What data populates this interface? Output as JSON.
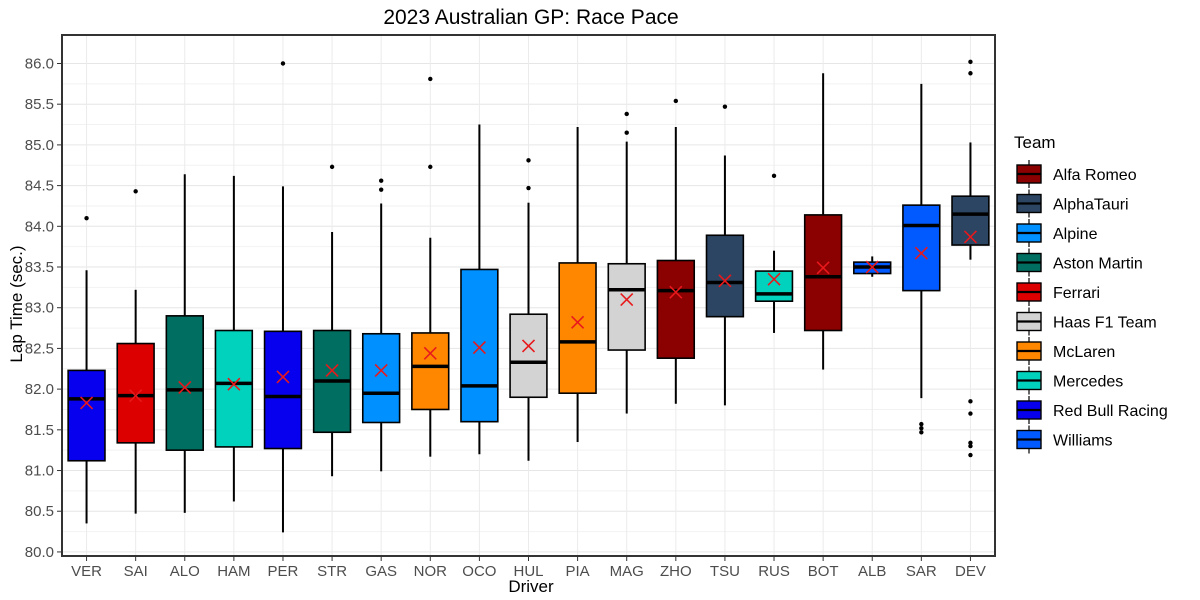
{
  "chart_data": {
    "type": "box",
    "title": "2023 Australian GP: Race Pace",
    "xlabel": "Driver",
    "ylabel": "Lap Time (sec.)",
    "ylim": [
      79.95,
      86.35
    ],
    "yticks": [
      "80.0",
      "80.5",
      "81.0",
      "81.5",
      "82.0",
      "82.5",
      "83.0",
      "83.5",
      "84.0",
      "84.5",
      "85.0",
      "85.5",
      "86.0"
    ],
    "grid": true,
    "legend": {
      "title": "Team",
      "placement": "right",
      "entries": [
        {
          "name": "Alfa Romeo",
          "color": "#8b0000"
        },
        {
          "name": "AlphaTauri",
          "color": "#2b4562"
        },
        {
          "name": "Alpine",
          "color": "#0090ff"
        },
        {
          "name": "Aston Martin",
          "color": "#006f62"
        },
        {
          "name": "Ferrari",
          "color": "#dc0000"
        },
        {
          "name": "Haas F1 Team",
          "color": "#d3d3d3"
        },
        {
          "name": "McLaren",
          "color": "#ff8700"
        },
        {
          "name": "Mercedes",
          "color": "#00d2be"
        },
        {
          "name": "Red Bull Racing",
          "color": "#0600ef"
        },
        {
          "name": "Williams",
          "color": "#005aff"
        }
      ]
    },
    "mean_marker": "×",
    "drivers": [
      {
        "driver": "VER",
        "team": "Red Bull Racing",
        "whisker_low": 80.35,
        "q1": 81.12,
        "median": 81.88,
        "q3": 82.23,
        "whisker_high": 83.46,
        "mean": 81.83,
        "outliers": [
          84.1
        ]
      },
      {
        "driver": "SAI",
        "team": "Ferrari",
        "whisker_low": 80.47,
        "q1": 81.34,
        "median": 81.92,
        "q3": 82.56,
        "whisker_high": 83.22,
        "mean": 81.92,
        "outliers": [
          84.43
        ]
      },
      {
        "driver": "ALO",
        "team": "Aston Martin",
        "whisker_low": 80.48,
        "q1": 81.25,
        "median": 81.99,
        "q3": 82.9,
        "whisker_high": 84.64,
        "mean": 82.02,
        "outliers": []
      },
      {
        "driver": "HAM",
        "team": "Mercedes",
        "whisker_low": 80.62,
        "q1": 81.29,
        "median": 82.07,
        "q3": 82.72,
        "whisker_high": 84.62,
        "mean": 82.06,
        "outliers": []
      },
      {
        "driver": "PER",
        "team": "Red Bull Racing",
        "whisker_low": 80.24,
        "q1": 81.27,
        "median": 81.91,
        "q3": 82.71,
        "whisker_high": 84.49,
        "mean": 82.15,
        "outliers": [
          86.0
        ]
      },
      {
        "driver": "STR",
        "team": "Aston Martin",
        "whisker_low": 80.93,
        "q1": 81.47,
        "median": 82.1,
        "q3": 82.72,
        "whisker_high": 83.93,
        "mean": 82.23,
        "outliers": [
          84.73
        ]
      },
      {
        "driver": "GAS",
        "team": "Alpine",
        "whisker_low": 80.99,
        "q1": 81.59,
        "median": 81.95,
        "q3": 82.68,
        "whisker_high": 84.28,
        "mean": 82.23,
        "outliers": [
          84.45,
          84.56
        ]
      },
      {
        "driver": "NOR",
        "team": "McLaren",
        "whisker_low": 81.17,
        "q1": 81.75,
        "median": 82.28,
        "q3": 82.69,
        "whisker_high": 83.86,
        "mean": 82.44,
        "outliers": [
          84.73,
          85.81
        ]
      },
      {
        "driver": "OCO",
        "team": "Alpine",
        "whisker_low": 81.2,
        "q1": 81.6,
        "median": 82.04,
        "q3": 83.47,
        "whisker_high": 85.25,
        "mean": 82.51,
        "outliers": []
      },
      {
        "driver": "HUL",
        "team": "Haas F1 Team",
        "whisker_low": 81.12,
        "q1": 81.9,
        "median": 82.33,
        "q3": 82.92,
        "whisker_high": 84.29,
        "mean": 82.53,
        "outliers": [
          84.47,
          84.81
        ]
      },
      {
        "driver": "PIA",
        "team": "McLaren",
        "whisker_low": 81.35,
        "q1": 81.95,
        "median": 82.58,
        "q3": 83.55,
        "whisker_high": 85.22,
        "mean": 82.82,
        "outliers": []
      },
      {
        "driver": "MAG",
        "team": "Haas F1 Team",
        "whisker_low": 81.7,
        "q1": 82.48,
        "median": 83.22,
        "q3": 83.54,
        "whisker_high": 85.04,
        "mean": 83.1,
        "outliers": [
          85.15,
          85.38
        ]
      },
      {
        "driver": "ZHO",
        "team": "Alfa Romeo",
        "whisker_low": 81.82,
        "q1": 82.38,
        "median": 83.21,
        "q3": 83.58,
        "whisker_high": 85.22,
        "mean": 83.19,
        "outliers": [
          85.54
        ]
      },
      {
        "driver": "TSU",
        "team": "AlphaTauri",
        "whisker_low": 81.8,
        "q1": 82.89,
        "median": 83.31,
        "q3": 83.89,
        "whisker_high": 84.87,
        "mean": 83.33,
        "outliers": [
          85.47
        ]
      },
      {
        "driver": "RUS",
        "team": "Mercedes",
        "whisker_low": 82.69,
        "q1": 83.08,
        "median": 83.17,
        "q3": 83.45,
        "whisker_high": 83.7,
        "mean": 83.35,
        "outliers": [
          84.62
        ]
      },
      {
        "driver": "BOT",
        "team": "Alfa Romeo",
        "whisker_low": 82.24,
        "q1": 82.72,
        "median": 83.38,
        "q3": 84.14,
        "whisker_high": 85.88,
        "mean": 83.49,
        "outliers": []
      },
      {
        "driver": "ALB",
        "team": "Williams",
        "whisker_low": 83.38,
        "q1": 83.42,
        "median": 83.5,
        "q3": 83.56,
        "whisker_high": 83.63,
        "mean": 83.5,
        "outliers": []
      },
      {
        "driver": "SAR",
        "team": "Williams",
        "whisker_low": 81.89,
        "q1": 83.21,
        "median": 84.01,
        "q3": 84.26,
        "whisker_high": 85.75,
        "mean": 83.67,
        "outliers": [
          81.47,
          81.52,
          81.57
        ]
      },
      {
        "driver": "DEV",
        "team": "AlphaTauri",
        "whisker_low": 83.59,
        "q1": 83.77,
        "median": 84.15,
        "q3": 84.37,
        "whisker_high": 85.03,
        "mean": 83.87,
        "outliers": [
          81.19,
          81.3,
          81.34,
          81.7,
          81.85,
          85.88,
          86.02
        ]
      }
    ]
  }
}
